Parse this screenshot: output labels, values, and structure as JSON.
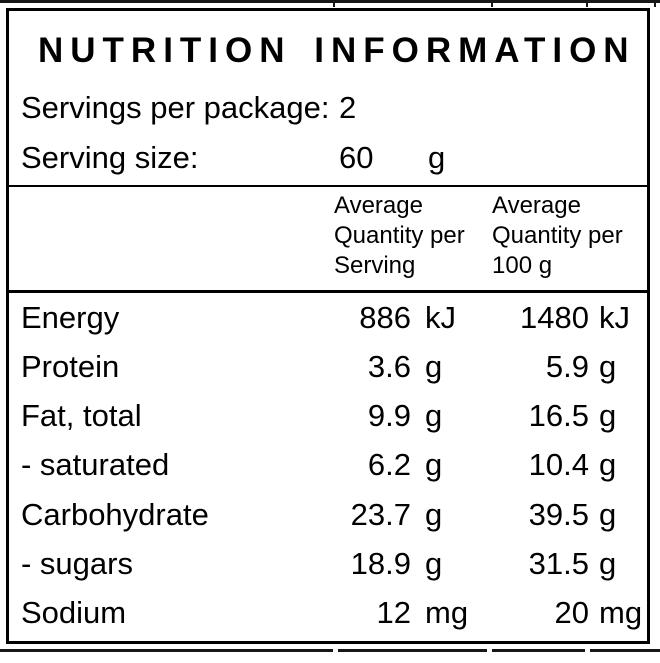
{
  "panel": {
    "title": "NUTRITION INFORMATION",
    "servings_per_package": {
      "label": "Servings per package:",
      "value": "2"
    },
    "serving_size": {
      "label": "Serving size:",
      "value": "60",
      "unit": "g"
    },
    "columns": {
      "per_serving": "Average\nQuantity per\nServing",
      "per_100g": "Average\nQuantity per\n100 g"
    },
    "rows": [
      {
        "label": "Energy",
        "per_serving": "886",
        "per_serving_unit": "kJ",
        "per_100g": "1480",
        "per_100g_unit": "kJ"
      },
      {
        "label": "Protein",
        "per_serving": "3.6",
        "per_serving_unit": "g",
        "per_100g": "5.9",
        "per_100g_unit": "g"
      },
      {
        "label": "Fat, total",
        "per_serving": "9.9",
        "per_serving_unit": "g",
        "per_100g": "16.5",
        "per_100g_unit": "g"
      },
      {
        "label": "- saturated",
        "per_serving": "6.2",
        "per_serving_unit": "g",
        "per_100g": "10.4",
        "per_100g_unit": "g"
      },
      {
        "label": "Carbohydrate",
        "per_serving": "23.7",
        "per_serving_unit": "g",
        "per_100g": "39.5",
        "per_100g_unit": "g"
      },
      {
        "label": "- sugars",
        "per_serving": "18.9",
        "per_serving_unit": "g",
        "per_100g": "31.5",
        "per_100g_unit": "g"
      },
      {
        "label": "Sodium",
        "per_serving": "12",
        "per_serving_unit": "mg",
        "per_100g": "20",
        "per_100g_unit": "mg"
      }
    ],
    "colors": {
      "ink": "#000000",
      "background": "#ffffff"
    }
  }
}
